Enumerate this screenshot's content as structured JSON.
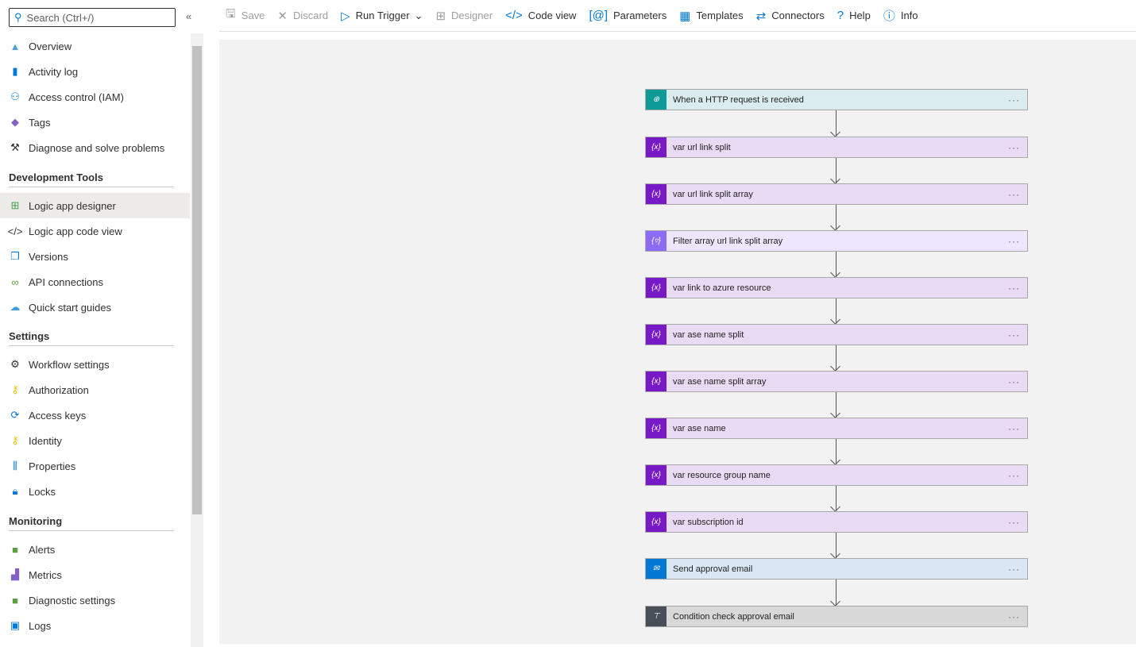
{
  "sidebar": {
    "search_placeholder": "Search (Ctrl+/)",
    "items": [
      {
        "label": "Overview",
        "icon": "overview-icon"
      },
      {
        "label": "Activity log",
        "icon": "activity-log-icon"
      },
      {
        "label": "Access control (IAM)",
        "icon": "iam-icon"
      },
      {
        "label": "Tags",
        "icon": "tag-icon"
      },
      {
        "label": "Diagnose and solve problems",
        "icon": "wrench-icon"
      }
    ],
    "sections": [
      {
        "title": "Development Tools",
        "items": [
          {
            "label": "Logic app designer",
            "icon": "designer-icon",
            "selected": true
          },
          {
            "label": "Logic app code view",
            "icon": "code-icon"
          },
          {
            "label": "Versions",
            "icon": "versions-icon"
          },
          {
            "label": "API connections",
            "icon": "api-connections-icon"
          },
          {
            "label": "Quick start guides",
            "icon": "quick-start-icon"
          }
        ]
      },
      {
        "title": "Settings",
        "items": [
          {
            "label": "Workflow settings",
            "icon": "gear-icon"
          },
          {
            "label": "Authorization",
            "icon": "key-icon"
          },
          {
            "label": "Access keys",
            "icon": "access-keys-icon"
          },
          {
            "label": "Identity",
            "icon": "identity-icon"
          },
          {
            "label": "Properties",
            "icon": "properties-icon"
          },
          {
            "label": "Locks",
            "icon": "lock-icon"
          }
        ]
      },
      {
        "title": "Monitoring",
        "items": [
          {
            "label": "Alerts",
            "icon": "alert-icon"
          },
          {
            "label": "Metrics",
            "icon": "metrics-icon"
          },
          {
            "label": "Diagnostic settings",
            "icon": "diagnostic-icon"
          },
          {
            "label": "Logs",
            "icon": "logs-icon"
          }
        ]
      }
    ]
  },
  "toolbar": [
    {
      "label": "Save",
      "icon": "save-icon",
      "disabled": true
    },
    {
      "label": "Discard",
      "icon": "close-icon",
      "disabled": true
    },
    {
      "label": "Run Trigger",
      "icon": "play-icon",
      "dropdown": true
    },
    {
      "label": "Designer",
      "icon": "designer-icon",
      "disabled": true
    },
    {
      "label": "Code view",
      "icon": "code-icon"
    },
    {
      "label": "Parameters",
      "icon": "parameters-icon"
    },
    {
      "label": "Templates",
      "icon": "templates-icon"
    },
    {
      "label": "Connectors",
      "icon": "connectors-icon"
    },
    {
      "label": "Help",
      "icon": "help-icon"
    },
    {
      "label": "Info",
      "icon": "info-icon"
    }
  ],
  "steps": [
    {
      "label": "When a HTTP request is received",
      "type": "http",
      "bg": "#dbecef",
      "icon_bg": "#0e9b98"
    },
    {
      "label": "var url link split",
      "type": "variable",
      "bg": "#eadbf5",
      "icon_bg": "#7719c6"
    },
    {
      "label": "var url link split array",
      "type": "variable",
      "bg": "#eadbf5",
      "icon_bg": "#7719c6"
    },
    {
      "label": "Filter array url link split array",
      "type": "filter",
      "bg": "#eee6fc",
      "icon_bg": "#8c6cf7"
    },
    {
      "label": "var link to azure resource",
      "type": "variable",
      "bg": "#eadbf5",
      "icon_bg": "#7719c6"
    },
    {
      "label": "var ase name split",
      "type": "variable",
      "bg": "#eadbf5",
      "icon_bg": "#7719c6"
    },
    {
      "label": "var ase name split array",
      "type": "variable",
      "bg": "#eadbf5",
      "icon_bg": "#7719c6"
    },
    {
      "label": "var ase name",
      "type": "variable",
      "bg": "#eadbf5",
      "icon_bg": "#7719c6"
    },
    {
      "label": "var resource group name",
      "type": "variable",
      "bg": "#eadbf5",
      "icon_bg": "#7719c6"
    },
    {
      "label": "var subscription id",
      "type": "variable",
      "bg": "#eadbf5",
      "icon_bg": "#7719c6"
    },
    {
      "label": "Send approval email",
      "type": "outlook",
      "bg": "#d9e7f5",
      "icon_bg": "#0078d4"
    },
    {
      "label": "Condition check approval email",
      "type": "condition",
      "bg": "#d8d8d8",
      "icon_bg": "#484f58"
    }
  ]
}
